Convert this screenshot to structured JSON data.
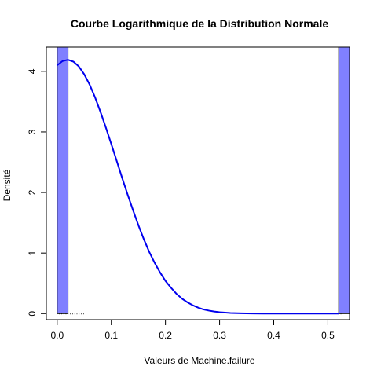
{
  "chart_data": {
    "type": "bar",
    "title": "Courbe Logarithmique de la Distribution Normale",
    "xlabel": "Valeurs de Machine.failure",
    "ylabel": "Densité",
    "xlim": [
      -0.02,
      0.54
    ],
    "ylim": [
      -0.1,
      4.4
    ],
    "x_ticks": [
      0.0,
      0.1,
      0.2,
      0.3,
      0.4,
      0.5
    ],
    "x_tick_labels": [
      "0.0",
      "0.1",
      "0.2",
      "0.3",
      "0.4",
      "0.5"
    ],
    "y_ticks": [
      0,
      1,
      2,
      3,
      4
    ],
    "y_tick_labels": [
      "0",
      "1",
      "2",
      "3",
      "4"
    ],
    "grid": false,
    "histogram": {
      "color": "#8080ff",
      "bins": [
        {
          "x0": 0.0,
          "x1": 0.02,
          "density": 4.4
        },
        {
          "x0": 0.52,
          "x1": 0.54,
          "density": 4.4
        }
      ]
    },
    "density_curve": {
      "color": "#0000ee",
      "points": [
        [
          0.0,
          4.1
        ],
        [
          0.01,
          4.17
        ],
        [
          0.02,
          4.19
        ],
        [
          0.03,
          4.16
        ],
        [
          0.04,
          4.08
        ],
        [
          0.05,
          3.95
        ],
        [
          0.06,
          3.78
        ],
        [
          0.07,
          3.57
        ],
        [
          0.08,
          3.33
        ],
        [
          0.09,
          3.07
        ],
        [
          0.1,
          2.8
        ],
        [
          0.11,
          2.52
        ],
        [
          0.12,
          2.24
        ],
        [
          0.13,
          1.97
        ],
        [
          0.14,
          1.71
        ],
        [
          0.15,
          1.46
        ],
        [
          0.16,
          1.23
        ],
        [
          0.17,
          1.02
        ],
        [
          0.18,
          0.84
        ],
        [
          0.19,
          0.68
        ],
        [
          0.2,
          0.54
        ],
        [
          0.21,
          0.43
        ],
        [
          0.22,
          0.33
        ],
        [
          0.23,
          0.25
        ],
        [
          0.24,
          0.19
        ],
        [
          0.25,
          0.14
        ],
        [
          0.26,
          0.1
        ],
        [
          0.27,
          0.07
        ],
        [
          0.28,
          0.05
        ],
        [
          0.29,
          0.035
        ],
        [
          0.3,
          0.024
        ],
        [
          0.32,
          0.011
        ],
        [
          0.34,
          0.005
        ],
        [
          0.36,
          0.002
        ],
        [
          0.38,
          0.001
        ],
        [
          0.4,
          0.0
        ],
        [
          0.45,
          0.0
        ],
        [
          0.5,
          0.0
        ],
        [
          0.52,
          0.0
        ]
      ]
    },
    "rug": {
      "color": "#000000",
      "x": [
        0.0,
        0.0,
        0.0,
        0.0,
        0.0,
        0.0,
        0.0,
        0.0,
        0.0,
        0.0,
        0.0,
        0.0,
        0.0,
        0.52,
        0.52
      ]
    }
  }
}
